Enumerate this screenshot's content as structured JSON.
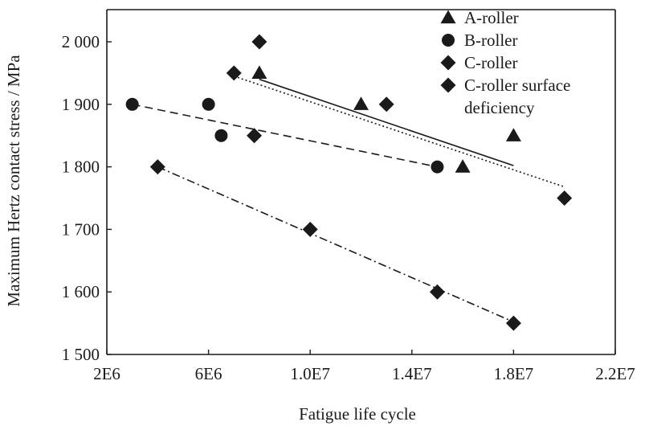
{
  "chart_data": {
    "type": "scatter",
    "title": "",
    "xlabel": "Fatigue life cycle",
    "ylabel": "Maximum Hertz contact stress / MPa",
    "xlim": [
      2000000,
      22000000
    ],
    "ylim": [
      1500,
      2050
    ],
    "grid": false,
    "legend_position": "top-right",
    "x_ticks": [
      {
        "value": 2000000,
        "label": "2E6"
      },
      {
        "value": 6000000,
        "label": "6E6"
      },
      {
        "value": 10000000,
        "label": "1.0E7"
      },
      {
        "value": 14000000,
        "label": "1.4E7"
      },
      {
        "value": 18000000,
        "label": "1.8E7"
      },
      {
        "value": 22000000,
        "label": "2.2E7"
      }
    ],
    "y_ticks": [
      {
        "value": 1500,
        "label": "1 500"
      },
      {
        "value": 1600,
        "label": "1 600"
      },
      {
        "value": 1700,
        "label": "1 700"
      },
      {
        "value": 1800,
        "label": "1 800"
      },
      {
        "value": 1900,
        "label": "1 900"
      },
      {
        "value": 2000,
        "label": "2 000"
      }
    ],
    "legend_lines": [
      "A-roller",
      "B-roller",
      "C-roller",
      "C-roller surface",
      "deficiency"
    ],
    "series": [
      {
        "name": "A-roller",
        "marker": "triangle",
        "legend_index": 0,
        "points": [
          {
            "x": 8000000,
            "y": 1950
          },
          {
            "x": 12000000,
            "y": 1900
          },
          {
            "x": 16000000,
            "y": 1800
          },
          {
            "x": 18000000,
            "y": 1850
          }
        ],
        "trend": {
          "style": "solid",
          "from": [
            8000000,
            1940
          ],
          "to": [
            18000000,
            1802
          ]
        }
      },
      {
        "name": "B-roller",
        "marker": "circle",
        "legend_index": 1,
        "points": [
          {
            "x": 3000000,
            "y": 1900
          },
          {
            "x": 6000000,
            "y": 1900
          },
          {
            "x": 6500000,
            "y": 1850
          },
          {
            "x": 15000000,
            "y": 1800
          }
        ],
        "trend": {
          "style": "dashed",
          "from": [
            3000000,
            1900
          ],
          "to": [
            15000000,
            1800
          ]
        }
      },
      {
        "name": "C-roller",
        "marker": "diamond",
        "legend_index": 2,
        "points": [
          {
            "x": 7000000,
            "y": 1950
          },
          {
            "x": 7800000,
            "y": 1850
          },
          {
            "x": 8000000,
            "y": 2000
          },
          {
            "x": 13000000,
            "y": 1900
          },
          {
            "x": 20000000,
            "y": 1750
          }
        ],
        "trend": {
          "style": "dotted",
          "from": [
            7000000,
            1945
          ],
          "to": [
            20000000,
            1768
          ]
        }
      },
      {
        "name": "C-roller surface deficiency",
        "marker": "diamond",
        "legend_index": 3,
        "points": [
          {
            "x": 4000000,
            "y": 1800
          },
          {
            "x": 10000000,
            "y": 1700
          },
          {
            "x": 15000000,
            "y": 1600
          },
          {
            "x": 18000000,
            "y": 1550
          }
        ],
        "trend": {
          "style": "dashdot",
          "from": [
            4000000,
            1800
          ],
          "to": [
            18000000,
            1552
          ]
        }
      }
    ]
  }
}
